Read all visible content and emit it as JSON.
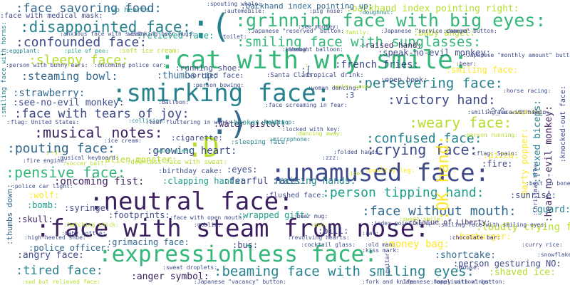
{
  "colors": {
    "deep_purple": "#3b1f5e",
    "indigo": "#3e4a89",
    "blue": "#31688e",
    "teal": "#26828e",
    "green_teal": "#1f9e89",
    "green": "#35b779",
    "lime": "#6ece58",
    "yellow_green": "#b5de2b",
    "yellow": "#fde725"
  },
  "words": [
    {
      "text": ":face savoring food:"
    },
    {
      "text": ":two hearts:"
    },
    {
      "text": ":face with medical mask:"
    },
    {
      "text": ":disappointed face:"
    },
    {
      "text": ":confounded face:"
    },
    {
      "text": ":smiling face with horns:"
    },
    {
      "text": ":("
    },
    {
      "text": ":backhand index pointing up:"
    },
    {
      "text": ":backhand index pointing right:"
    },
    {
      "text": ":grinning face with big eyes:"
    },
    {
      "text": ":smiling face with sunglasses:"
    },
    {
      "text": ":baby angel:"
    },
    {
      "text": ":sleepy face:"
    },
    {
      "text": ":cat with wry smile:"
    },
    {
      "text": ":raised hand:"
    },
    {
      "text": ":speak-no-evil monkey:"
    },
    {
      "text": ":french fries:"
    },
    {
      "text": ":smiling face:"
    },
    {
      "text": ":steaming bowl:"
    },
    {
      "text": ":thumbs up:"
    },
    {
      "text": ":relieved face:"
    },
    {
      "text": ":backhand index pointing left:"
    },
    {
      "text": ":strawberry:"
    },
    {
      "text": ":smirking face:"
    },
    {
      "text": ":persevering face:"
    },
    {
      "text": ":see-no-evil monkey:"
    },
    {
      "text": ":victory hand:"
    },
    {
      "text": ":face with tears of joy:"
    },
    {
      "text": ":running shoe:"
    },
    {
      "text": ":video game:"
    },
    {
      "text": ":weary face:"
    },
    {
      "text": ":musical notes:"
    },
    {
      "text": ":)"
    },
    {
      "text": ":confused face:"
    },
    {
      "text": ":water pistol:"
    },
    {
      "text": ":cigarette:"
    },
    {
      "text": ":D"
    },
    {
      "text": ":pouting face:"
    },
    {
      "text": ":crying face:"
    },
    {
      "text": ":growing heart:"
    },
    {
      "text": ":alien monster:"
    },
    {
      "text": ":pensive face:"
    },
    {
      "text": ":unamused face:"
    },
    {
      "text": ":OK hand:"
    },
    {
      "text": ":fire:"
    },
    {
      "text": ":oncoming fist:"
    },
    {
      "text": ":eyes:"
    },
    {
      "text": ":clapping hands:"
    },
    {
      "text": ":neutral face:"
    },
    {
      "text": ":person tipping hand:"
    },
    {
      "text": ":wolf:"
    },
    {
      "text": ":sunrise:"
    },
    {
      "text": ":bomb:"
    },
    {
      "text": ":syringe:"
    },
    {
      "text": ":footprints:"
    },
    {
      "text": ":wrapped gift:"
    },
    {
      "text": ":pill:"
    },
    {
      "text": ":face without mouth:"
    },
    {
      "text": ":guard:"
    },
    {
      "text": ":skull:"
    },
    {
      "text": ":thumbs down:"
    },
    {
      "text": ":face with steam from nose:"
    },
    {
      "text": ":loudly crying face:"
    },
    {
      "text": ":hamburger:"
    },
    {
      "text": ":police officer:"
    },
    {
      "text": ":grimacing face:"
    },
    {
      "text": ":bus:"
    },
    {
      "text": ":money bag:"
    },
    {
      "text": ":angry face:"
    },
    {
      "text": ":expressionless face:"
    },
    {
      "text": ":shortcake:"
    },
    {
      "text": ":person gesturing NO:"
    },
    {
      "text": ":tired face:"
    },
    {
      "text": ":anger symbol:"
    },
    {
      "text": ":beaming face with smiling eyes:"
    },
    {
      "text": ":shaved ice:"
    },
    {
      "text": ":flexed biceps:"
    },
    {
      "text": ":hear-no-evil monkey:"
    },
    {
      "text": ":party popper:"
    },
    {
      "text": ":pizza:"
    },
    {
      "text": ":fearful face:"
    },
    {
      "text": ":raising hands:"
    },
    {
      "text": ":worried face:"
    },
    {
      "text": ":sleeping face:"
    },
    {
      "text": ":poultry leg:"
    },
    {
      "text": ":birthday cake:"
    },
    {
      "text": ":flushed face:"
    },
    {
      "text": ":downcast face with sweat:"
    },
    {
      "text": ":open book:"
    },
    {
      "text": ":broken heart:"
    },
    {
      "text": ":Statue of Liberty:"
    },
    {
      "text": ":Santa Claus:"
    },
    {
      "text": ":tropical drink:"
    },
    {
      "text": ":soft ice cream:"
    },
    {
      "text": ":pile of poo:"
    },
    {
      "text": ":eggplant:"
    },
    {
      "text": ":banana:"
    },
    {
      "text": ":toilet:"
    },
    {
      "text": ":family:"
    },
    {
      "text": ":camera:"
    },
    {
      "text": ":cocktail glass:"
    },
    {
      "text": ":chocolate bar:"
    },
    {
      "text": ":mouse:"
    },
    {
      "text": ":collision:"
    },
    {
      "text": ":lollipop:"
    },
    {
      "text": ":microphone:"
    },
    {
      "text": ":wine glass:"
    },
    {
      "text": ":ice cream:"
    },
    {
      "text": ":musical keyboard:"
    },
    {
      "text": ":sweat droplets:"
    },
    {
      "text": ":revolving hearts:"
    },
    {
      "text": ":beer mug:"
    },
    {
      "text": ":automobile:"
    },
    {
      "text": ":pig nose:"
    },
    {
      "text": ":doughnut:"
    },
    {
      "text": ":spouting whale:"
    },
    {
      "text": ":clinking beer mugs:"
    },
    {
      "text": ":anxious face with sweat:"
    },
    {
      "text": ":Japanese \"reserved\" button:"
    },
    {
      "text": ":Japanese \"service charge\" button:"
    },
    {
      "text": ":smiling face with halo:"
    },
    {
      "text": ":Christmas tree:"
    },
    {
      "text": ":knocked-out face:"
    },
    {
      "text": ":flag: United States:"
    },
    {
      "text": ":leaf fluttering in wind:"
    },
    {
      "text": ":face screaming in fear:"
    },
    {
      "text": ":horse racing:"
    },
    {
      "text": ":spaghetti:"
    },
    {
      "text": ":curry rice:"
    },
    {
      "text": ":snowflake:"
    },
    {
      "text": ":person bowing:"
    },
    {
      "text": ":poo:"
    },
    {
      "text": ":face with open mouth:"
    },
    {
      "text": ":goblin:"
    },
    {
      "text": ":index pointing up:"
    },
    {
      "text": ":old man:"
    },
    {
      "text": ":hatching chick:"
    },
    {
      "text": ":baby bottle:"
    },
    {
      "text": ":high-heeled shoe:"
    },
    {
      "text": ":police car light:"
    },
    {
      "text": ":soccer ball:"
    },
    {
      "text": ":fire engine:"
    },
    {
      "text": ":money with wings:"
    },
    {
      "text": ":guitar:"
    },
    {
      "text": ":sad but relieved face:"
    },
    {
      "text": ":Japanese \"application\" button:"
    },
    {
      "text": ":Japanese \"vacancy\" button:"
    },
    {
      "text": ":rat:"
    },
    {
      "text": ":kiss mark:"
    },
    {
      "text": ":bear:"
    },
    {
      "text": ":water wave:"
    },
    {
      "text": ":balloon:"
    },
    {
      "text": ":folded hands:"
    },
    {
      "text": ":locked with key:"
    },
    {
      "text": ":person running:"
    },
    {
      "text": ":dancing away:"
    },
    {
      "text": ":best on bone:"
    },
    {
      "text": ":ice:"
    },
    {
      "text": ":"
    },
    {
      "text": ":zzz:"
    },
    {
      "text": ":fork and knife:"
    },
    {
      "text": ":thought balloon:"
    },
    {
      "text": ":see monkey:"
    },
    {
      "text": ":Japanese \"monthly amount\" button:"
    },
    {
      "text": ":person with bunny ears:"
    },
    {
      "text": ":oncoming police car:"
    },
    {
      "text": ":face with halo:"
    },
    {
      "text": ":woman dancing:"
    },
    {
      "text": ":sweat smile:"
    },
    {
      "text": ":smiling face with smiling eyes:"
    },
    {
      "text": ":3"
    },
    {
      "text": ":^_^"
    },
    {
      "text": ":["
    },
    {
      "text": ":~):"
    },
    {
      "text": ":flag: Spain:"
    }
  ]
}
